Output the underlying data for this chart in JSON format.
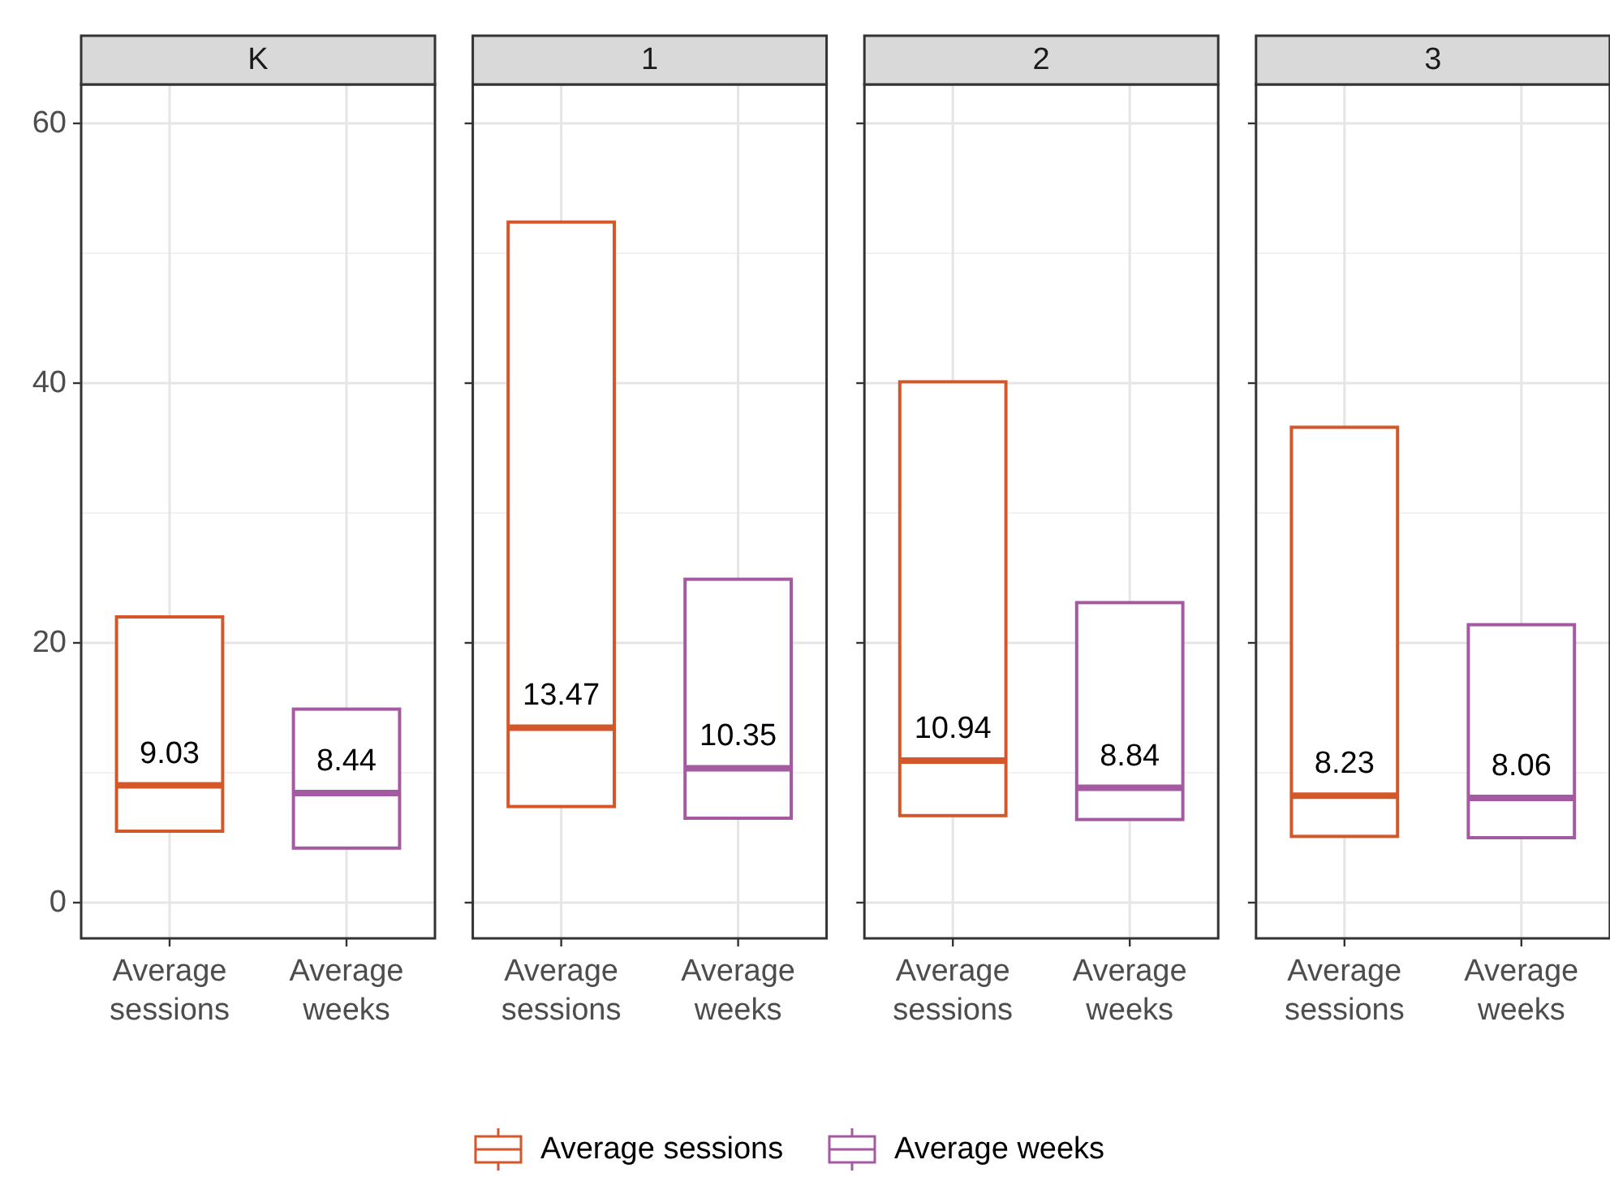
{
  "chart_data": [
    {
      "type": "box",
      "title": "K",
      "categories": [
        "Average sessions",
        "Average weeks"
      ],
      "ylim": [
        -2.75,
        63
      ],
      "yticks": [
        0,
        20,
        40,
        60
      ],
      "grid": true,
      "legend": "bottom",
      "series": [
        {
          "name": "Average sessions",
          "color": "#d4572a",
          "boxes": [
            {
              "low": 5.5,
              "q1": 5.5,
              "median": 9.03,
              "q3": 22,
              "high": 22
            },
            null
          ],
          "value_labels": [
            "9.03",
            null
          ]
        },
        {
          "name": "Average weeks",
          "color": "#a45aa0",
          "boxes": [
            null,
            {
              "low": 4.2,
              "q1": 4.2,
              "median": 8.44,
              "q3": 14.9,
              "high": 14.9
            }
          ],
          "value_labels": [
            null,
            "8.44"
          ]
        }
      ]
    },
    {
      "type": "box",
      "title": "1",
      "categories": [
        "Average sessions",
        "Average weeks"
      ],
      "ylim": [
        -2.75,
        63
      ],
      "yticks": [
        0,
        20,
        40,
        60
      ],
      "grid": true,
      "tick_labels": "x",
      "series": [
        {
          "color": "#d4572a",
          "boxes": [
            {
              "low": 7.4,
              "q1": 7.4,
              "median": 13.47,
              "q3": 52.4,
              "high": 52.4
            },
            null
          ],
          "value_labels": [
            "13.47",
            null
          ]
        },
        {
          "color": "#a45aa0",
          "boxes": [
            null,
            {
              "low": 6.5,
              "q1": 6.5,
              "median": 10.35,
              "q3": 24.9,
              "high": 24.9
            }
          ],
          "value_labels": [
            null,
            "10.35"
          ]
        }
      ]
    },
    {
      "type": "box",
      "title": "2",
      "categories": [
        "Average sessions",
        "Average weeks"
      ],
      "ylim": [
        -2.75,
        63
      ],
      "yticks": [
        0,
        20,
        40,
        60
      ],
      "grid": true,
      "tick_labels": "x",
      "series": [
        {
          "color": "#d4572a",
          "boxes": [
            {
              "low": 6.7,
              "q1": 6.7,
              "median": 10.94,
              "q3": 40.1,
              "high": 40.1
            },
            null
          ],
          "value_labels": [
            "10.94",
            null
          ]
        },
        {
          "color": "#a45aa0",
          "boxes": [
            null,
            {
              "low": 6.4,
              "q1": 6.4,
              "median": 8.84,
              "q3": 23.1,
              "high": 23.1
            }
          ],
          "value_labels": [
            null,
            "8.84"
          ]
        }
      ]
    },
    {
      "type": "box",
      "title": "3",
      "categories": [
        "Average sessions",
        "Average weeks"
      ],
      "ylim": [
        -2.75,
        63
      ],
      "yticks": [
        0,
        20,
        40,
        60
      ],
      "grid": true,
      "tick_labels": "x",
      "series": [
        {
          "color": "#d4572a",
          "boxes": [
            {
              "low": 5.1,
              "q1": 5.1,
              "median": 8.23,
              "q3": 36.6,
              "high": 36.6
            },
            null
          ],
          "value_labels": [
            "8.23",
            null
          ]
        },
        {
          "color": "#a45aa0",
          "boxes": [
            null,
            {
              "low": 5.0,
              "q1": 5.0,
              "median": 8.06,
              "q3": 21.4,
              "high": 21.4
            }
          ],
          "value_labels": [
            null,
            "8.06"
          ]
        }
      ]
    }
  ]
}
